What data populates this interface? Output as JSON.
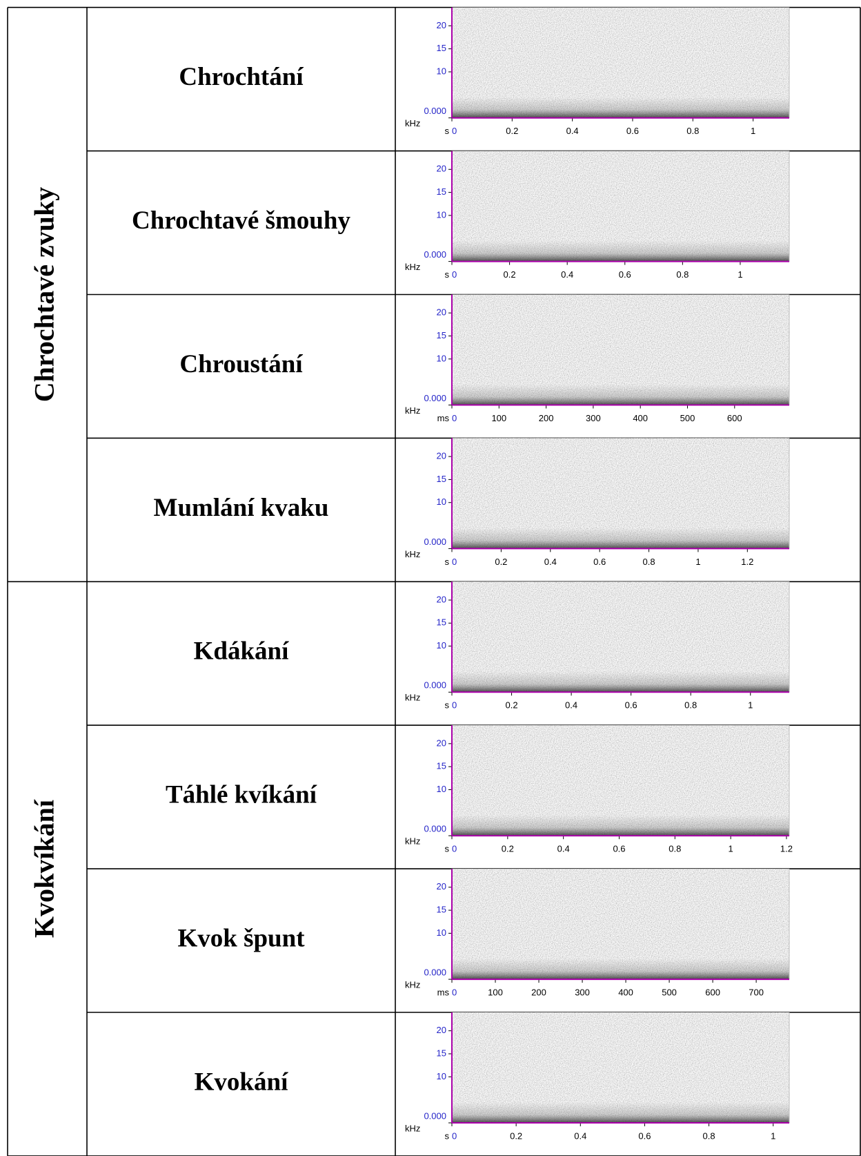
{
  "spectrogram_axis": {
    "y_unit": "kHz",
    "ylim": [
      0,
      24
    ],
    "yticks": [
      20,
      15,
      10,
      {
        "value": 0,
        "label": "0.000"
      }
    ]
  },
  "groups": [
    {
      "label": "Chrochtavé zvuky",
      "rows": [
        {
          "label": "Chrochtání",
          "spectrogram": {
            "x_unit": "s",
            "xlim": [
              0,
              1.12
            ],
            "xticks": [
              0,
              0.2,
              0.4,
              0.6,
              0.8,
              1
            ]
          }
        },
        {
          "label": "Chrochtavé šmouhy",
          "spectrogram": {
            "x_unit": "s",
            "xlim": [
              0,
              1.17
            ],
            "xticks": [
              0,
              0.2,
              0.4,
              0.6,
              0.8,
              1
            ]
          }
        },
        {
          "label": "Chroustání",
          "spectrogram": {
            "x_unit": "ms",
            "xlim": [
              0,
              716
            ],
            "xticks": [
              0,
              100,
              200,
              300,
              400,
              500,
              600
            ]
          }
        },
        {
          "label": "Mumlání kvaku",
          "spectrogram": {
            "x_unit": "s",
            "xlim": [
              0,
              1.37
            ],
            "xticks": [
              0,
              0.2,
              0.4,
              0.6,
              0.8,
              1,
              1.2
            ]
          }
        }
      ]
    },
    {
      "label": "Kvokvíkání",
      "rows": [
        {
          "label": "Kdákání",
          "spectrogram": {
            "x_unit": "s",
            "xlim": [
              0,
              1.13
            ],
            "xticks": [
              0,
              0.2,
              0.4,
              0.6,
              0.8,
              1
            ]
          }
        },
        {
          "label": "Táhlé kvíkání",
          "spectrogram": {
            "x_unit": "s",
            "xlim": [
              0,
              1.21
            ],
            "xticks": [
              0,
              0.2,
              0.4,
              0.6,
              0.8,
              1,
              1.2
            ]
          }
        },
        {
          "label": "Kvok špunt",
          "spectrogram": {
            "x_unit": "ms",
            "xlim": [
              0,
              776
            ],
            "xticks": [
              0,
              100,
              200,
              300,
              400,
              500,
              600,
              700
            ]
          }
        },
        {
          "label": "Kvokání",
          "spectrogram": {
            "x_unit": "s",
            "xlim": [
              0,
              1.05
            ],
            "xticks": [
              0,
              0.2,
              0.4,
              0.6,
              0.8,
              1
            ]
          }
        }
      ]
    }
  ]
}
